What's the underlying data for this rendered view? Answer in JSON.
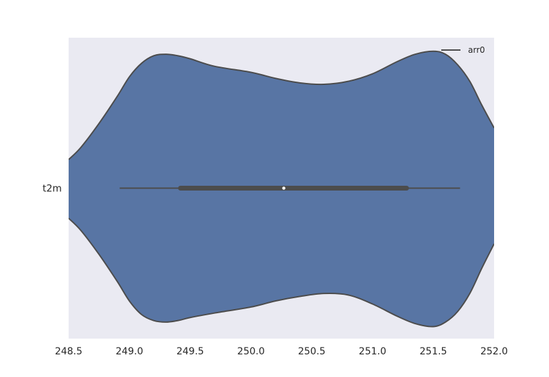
{
  "chart_data": {
    "type": "violin",
    "orientation": "horizontal",
    "categories": [
      "t2m"
    ],
    "xlim": [
      248.5,
      252.0
    ],
    "xticks": [
      "248.5",
      "249.0",
      "249.5",
      "250.0",
      "250.5",
      "251.0",
      "251.5",
      "252.0"
    ],
    "grid": false,
    "background": "#eaeaf2",
    "violin_color": "#5875a4",
    "edge_color": "#4c4c4c",
    "legend": {
      "placement": "top-right",
      "entries": [
        {
          "label": "arr0"
        }
      ]
    },
    "series": [
      {
        "category": "t2m",
        "whisker_low": 248.92,
        "q1": 249.42,
        "median": 250.27,
        "q3": 251.28,
        "whisker_high": 251.72,
        "density_upper": [
          [
            248.5,
            0.19
          ],
          [
            248.6,
            0.27
          ],
          [
            248.75,
            0.43
          ],
          [
            248.9,
            0.61
          ],
          [
            249.0,
            0.74
          ],
          [
            249.1,
            0.83
          ],
          [
            249.2,
            0.88
          ],
          [
            249.3,
            0.89
          ],
          [
            249.4,
            0.88
          ],
          [
            249.5,
            0.86
          ],
          [
            249.7,
            0.81
          ],
          [
            250.0,
            0.77
          ],
          [
            250.2,
            0.73
          ],
          [
            250.4,
            0.7
          ],
          [
            250.6,
            0.69
          ],
          [
            250.8,
            0.71
          ],
          [
            251.0,
            0.76
          ],
          [
            251.2,
            0.84
          ],
          [
            251.35,
            0.89
          ],
          [
            251.5,
            0.91
          ],
          [
            251.6,
            0.89
          ],
          [
            251.7,
            0.82
          ],
          [
            251.8,
            0.71
          ],
          [
            251.9,
            0.55
          ],
          [
            252.0,
            0.4
          ]
        ],
        "density_lower": [
          [
            248.5,
            0.2
          ],
          [
            248.6,
            0.28
          ],
          [
            248.75,
            0.44
          ],
          [
            248.9,
            0.62
          ],
          [
            249.0,
            0.75
          ],
          [
            249.1,
            0.84
          ],
          [
            249.2,
            0.88
          ],
          [
            249.3,
            0.89
          ],
          [
            249.4,
            0.88
          ],
          [
            249.5,
            0.86
          ],
          [
            249.7,
            0.83
          ],
          [
            250.0,
            0.79
          ],
          [
            250.2,
            0.75
          ],
          [
            250.4,
            0.72
          ],
          [
            250.6,
            0.7
          ],
          [
            250.8,
            0.71
          ],
          [
            251.0,
            0.77
          ],
          [
            251.2,
            0.85
          ],
          [
            251.35,
            0.9
          ],
          [
            251.5,
            0.92
          ],
          [
            251.6,
            0.89
          ],
          [
            251.7,
            0.82
          ],
          [
            251.8,
            0.7
          ],
          [
            251.9,
            0.53
          ],
          [
            252.0,
            0.37
          ]
        ]
      }
    ]
  }
}
